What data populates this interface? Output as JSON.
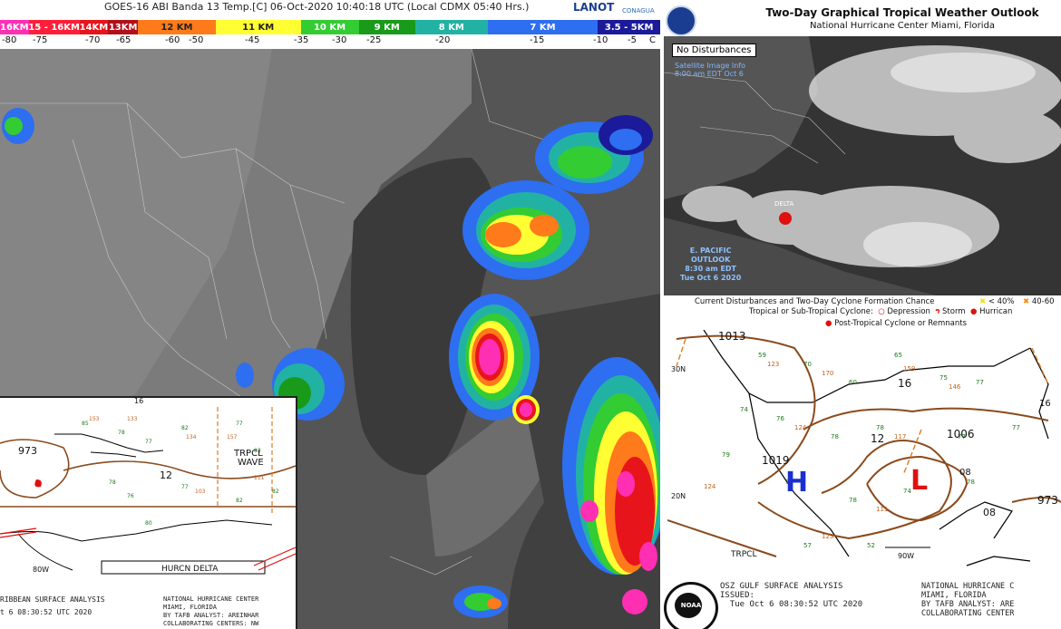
{
  "satellite": {
    "title": "GOES-16 ABI Banda 13 Temp.[C] 06-Oct-2020 10:40:18 UTC (Local CDMX  05:40 Hrs.)",
    "logo_text": "LANOT",
    "agency_text": "CONAGUA",
    "scale_bands": [
      {
        "label": "16KM",
        "color": "#ff2fb4",
        "text_color": "#ffffff"
      },
      {
        "label": "15 - 16KM",
        "color": "#ff1f3a",
        "text_color": "#ffffff"
      },
      {
        "label": "14KM",
        "color": "#e8141c",
        "text_color": "#ffffff"
      },
      {
        "label": "13KM",
        "color": "#b0101a",
        "text_color": "#ffffff"
      },
      {
        "label": "12 KM",
        "color": "#ff7a1a",
        "text_color": "#222222"
      },
      {
        "label": "11 KM",
        "color": "#ffff33",
        "text_color": "#222222"
      },
      {
        "label": "10 KM",
        "color": "#33cc33",
        "text_color": "#ffffff"
      },
      {
        "label": "9 KM",
        "color": "#1a9a1a",
        "text_color": "#ffffff"
      },
      {
        "label": "8 KM",
        "color": "#22b2a4",
        "text_color": "#ffffff"
      },
      {
        "label": "7 KM",
        "color": "#2e6ef0",
        "text_color": "#ffffff"
      },
      {
        "label": "3.5 - 5KM",
        "color": "#1a1a9a",
        "text_color": "#ffffff"
      }
    ],
    "temp_ticks": [
      "-80",
      "-75",
      "-70",
      "-65",
      "-60",
      "-50",
      "-45",
      "-35",
      "-30",
      "-25",
      "-20",
      "-15",
      "-10",
      "-5",
      "C"
    ]
  },
  "inset": {
    "pressure_labels": [
      "973",
      "12"
    ],
    "wave_label_1": "TRPCL",
    "wave_label_2": "WAVE",
    "storm_label": "HURCN DELTA",
    "caption": "RIBBEAN SURFACE ANALYSIS",
    "issued": "t 6 08:30:52 UTC 2020",
    "lon_label": "80W",
    "top_label": "16",
    "nhc_block": "NATIONAL HURRICANE CENTER\nMIAMI, FLORIDA\nBY TAFB ANALYST: AREINHAR\nCOLLABORATING CENTERS: NW"
  },
  "two": {
    "title": "Two-Day Graphical Tropical Weather Outlook",
    "subtitle": "National Hurricane Center  Miami, Florida",
    "no_disturbances": "No Disturbances",
    "sat_image_line1": "Satellite Image Info",
    "sat_image_line2": "8:00 am EDT Oct 6",
    "storm_name": "DELTA",
    "epac_line1": "E. PACIFIC",
    "epac_line2": "OUTLOOK",
    "epac_line3": "8:30 am EDT",
    "epac_line4": "Tue Oct 6 2020",
    "legend_title": "Current Disturbances and Two-Day Cyclone Formation Chance",
    "legend_lt40": "< 40%",
    "legend_4060": "40-60",
    "legend_tc_label": "Tropical or Sub-Tropical Cyclone:",
    "legend_depression": "Depression",
    "legend_storm": "Storm",
    "legend_hurricane": "Hurrican",
    "legend_post": "Post-Tropical Cyclone or Remnants",
    "colors": {
      "lt40": "#f2e400",
      "gt40": "#ff8a00",
      "hurricane": "#e01010"
    }
  },
  "gulf": {
    "pressure_labels": [
      "1013",
      "16",
      "12",
      "1006",
      "08",
      "1019",
      "08",
      "973",
      "16"
    ],
    "high_letter": "H",
    "low_letter": "L",
    "lat_30": "30N",
    "lat_20": "20N",
    "lon_90": "90W",
    "trpcl": "TRPCL",
    "caption": "OSZ GULF SURFACE ANALYSIS\nISSUED:\n  Tue Oct 6 08:30:52 UTC 2020",
    "nhc_block": "NATIONAL HURRICANE C\nMIAMI, FLORIDA\nBY TAFB ANALYST: ARE\nCOLLABORATING CENTER",
    "noaa_logo": "NOAA",
    "colors": {
      "high": "#1a2fd0",
      "low": "#e01010",
      "isobar": "#8b4a1c",
      "trough": "#e07a20"
    }
  }
}
